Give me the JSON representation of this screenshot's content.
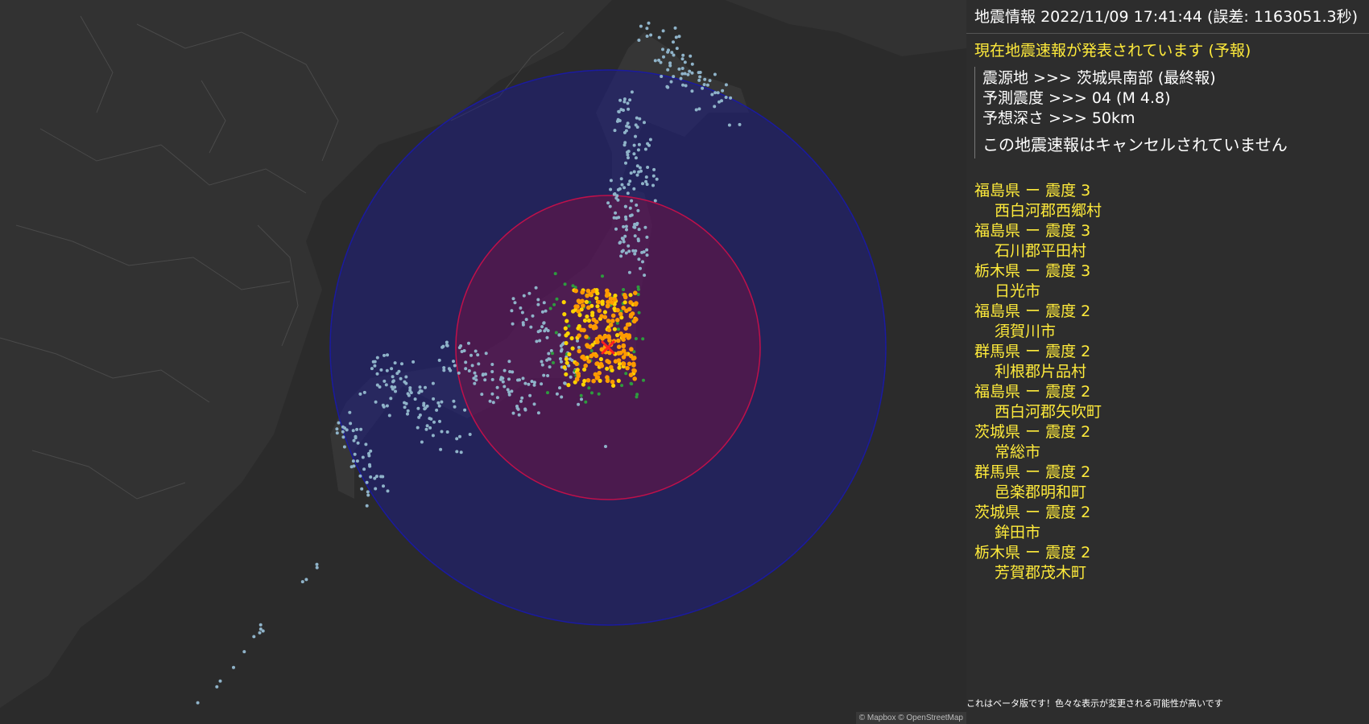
{
  "header": {
    "title": "地震情報",
    "datetime": "2022/11/09 17:41:44",
    "error": "(誤差: 1163051.3秒)"
  },
  "alert_status": "現在地震速報が発表されています (予報)",
  "eew": {
    "epicenter_label": "震源地 >>> 茨城県南部 (最終報)",
    "intensity_label": "予測震度 >>> 04 (M 4.8)",
    "depth_label": "予想深さ >>> 50km",
    "cancel_note": "この地震速報はキャンセルされていません"
  },
  "observations": [
    {
      "pref": "福島県 ー 震度 3",
      "city": "西白河郡西郷村"
    },
    {
      "pref": "福島県 ー 震度 3",
      "city": "石川郡平田村"
    },
    {
      "pref": "栃木県 ー 震度 3",
      "city": "日光市"
    },
    {
      "pref": "福島県 ー 震度 2",
      "city": "須賀川市"
    },
    {
      "pref": "群馬県 ー 震度 2",
      "city": "利根郡片品村"
    },
    {
      "pref": "福島県 ー 震度 2",
      "city": "西白河郡矢吹町"
    },
    {
      "pref": "茨城県 ー 震度 2",
      "city": "常総市"
    },
    {
      "pref": "群馬県 ー 震度 2",
      "city": "邑楽郡明和町"
    },
    {
      "pref": "茨城県 ー 震度 2",
      "city": "鉾田市"
    },
    {
      "pref": "栃木県 ー 震度 2",
      "city": "芳賀郡茂木町"
    }
  ],
  "beta_note": "これはベータ版です！色々な表示が変更される可能性が高いです",
  "attribution": "© Mapbox © OpenStreetMap",
  "colors": {
    "accent": "#ffeb3b",
    "p_wave_circle": "#2020a0",
    "s_wave_circle": "#c0104a",
    "epicenter": "#ff2020",
    "intensity_low": "#8fb3c9",
    "intensity_1": "#2e9b3e",
    "intensity_2": "#ffd200",
    "intensity_3": "#ff9a00"
  },
  "map": {
    "epicenter_icon": "x-mark-icon"
  }
}
